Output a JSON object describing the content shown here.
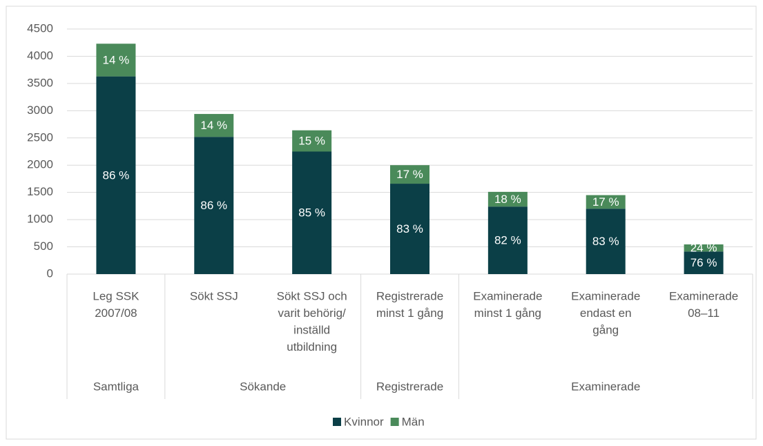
{
  "chart_data": {
    "type": "bar",
    "stacked": true,
    "categories": [
      [
        "Leg SSK",
        "2007/08"
      ],
      [
        "Sökt SSJ"
      ],
      [
        "Sökt SSJ och",
        "varit behörig/",
        "inställd",
        "utbildning"
      ],
      [
        "Registrerade",
        "minst 1 gång"
      ],
      [
        "Examinerade",
        "minst 1 gång"
      ],
      [
        "Examinerade",
        "endast en",
        "gång"
      ],
      [
        "Examinerade",
        "08–11"
      ]
    ],
    "groups": [
      {
        "label": "Samtliga",
        "count": 1
      },
      {
        "label": "Sökande",
        "count": 2
      },
      {
        "label": "Registrerade",
        "count": 1
      },
      {
        "label": "Examinerade",
        "count": 3
      }
    ],
    "series": [
      {
        "name": "Kvinnor",
        "color": "#0b3f47",
        "values": [
          3630,
          2520,
          2250,
          1660,
          1240,
          1200,
          415
        ],
        "value_labels": [
          "86 %",
          "86 %",
          "85 %",
          "83 %",
          "82 %",
          "83 %",
          "76 %"
        ]
      },
      {
        "name": "Män",
        "color": "#4a8a5a",
        "values": [
          600,
          420,
          390,
          340,
          270,
          250,
          130
        ],
        "value_labels": [
          "14 %",
          "14 %",
          "15 %",
          "17 %",
          "18 %",
          "17 %",
          "24 %"
        ]
      }
    ],
    "ylim": [
      0,
      4500
    ],
    "yticks": [
      0,
      500,
      1000,
      1500,
      2000,
      2500,
      3000,
      3500,
      4000,
      4500
    ],
    "grid": true,
    "legend": "bottom"
  }
}
